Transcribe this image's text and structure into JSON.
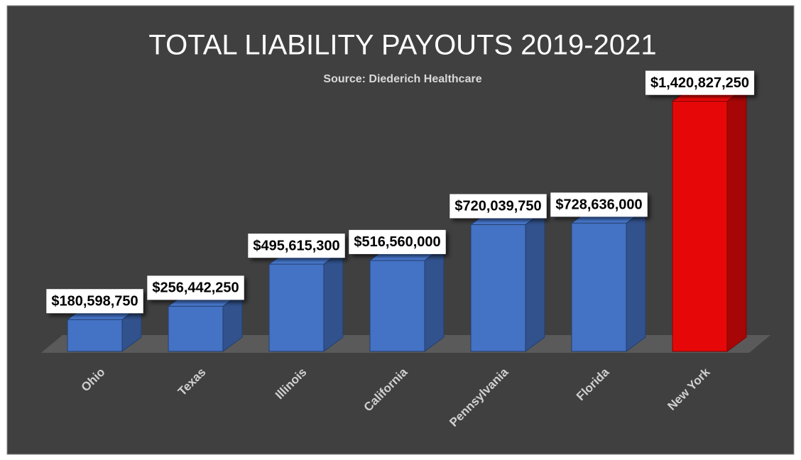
{
  "chart_data": {
    "type": "bar3d",
    "title": "TOTAL LIABILITY PAYOUTS 2019-2021",
    "subtitle": "Source: Diederich Healthcare",
    "categories": [
      "Ohio",
      "Texas",
      "Illinois",
      "California",
      "Pennsylvania",
      "Florida",
      "New York"
    ],
    "values": [
      180598750,
      256442250,
      495615300,
      516560000,
      720039750,
      728636000,
      1420827250
    ],
    "value_labels": [
      "$180,598,750",
      "$256,442,250",
      "$495,615,300",
      "$516,560,000",
      "$720,039,750",
      "$728,636,000",
      "$1,420,827,250"
    ],
    "colors": [
      "#4472c4",
      "#4472c4",
      "#4472c4",
      "#4472c4",
      "#4472c4",
      "#4472c4",
      "#e60808"
    ],
    "ylim": [
      0,
      1500000000
    ]
  }
}
